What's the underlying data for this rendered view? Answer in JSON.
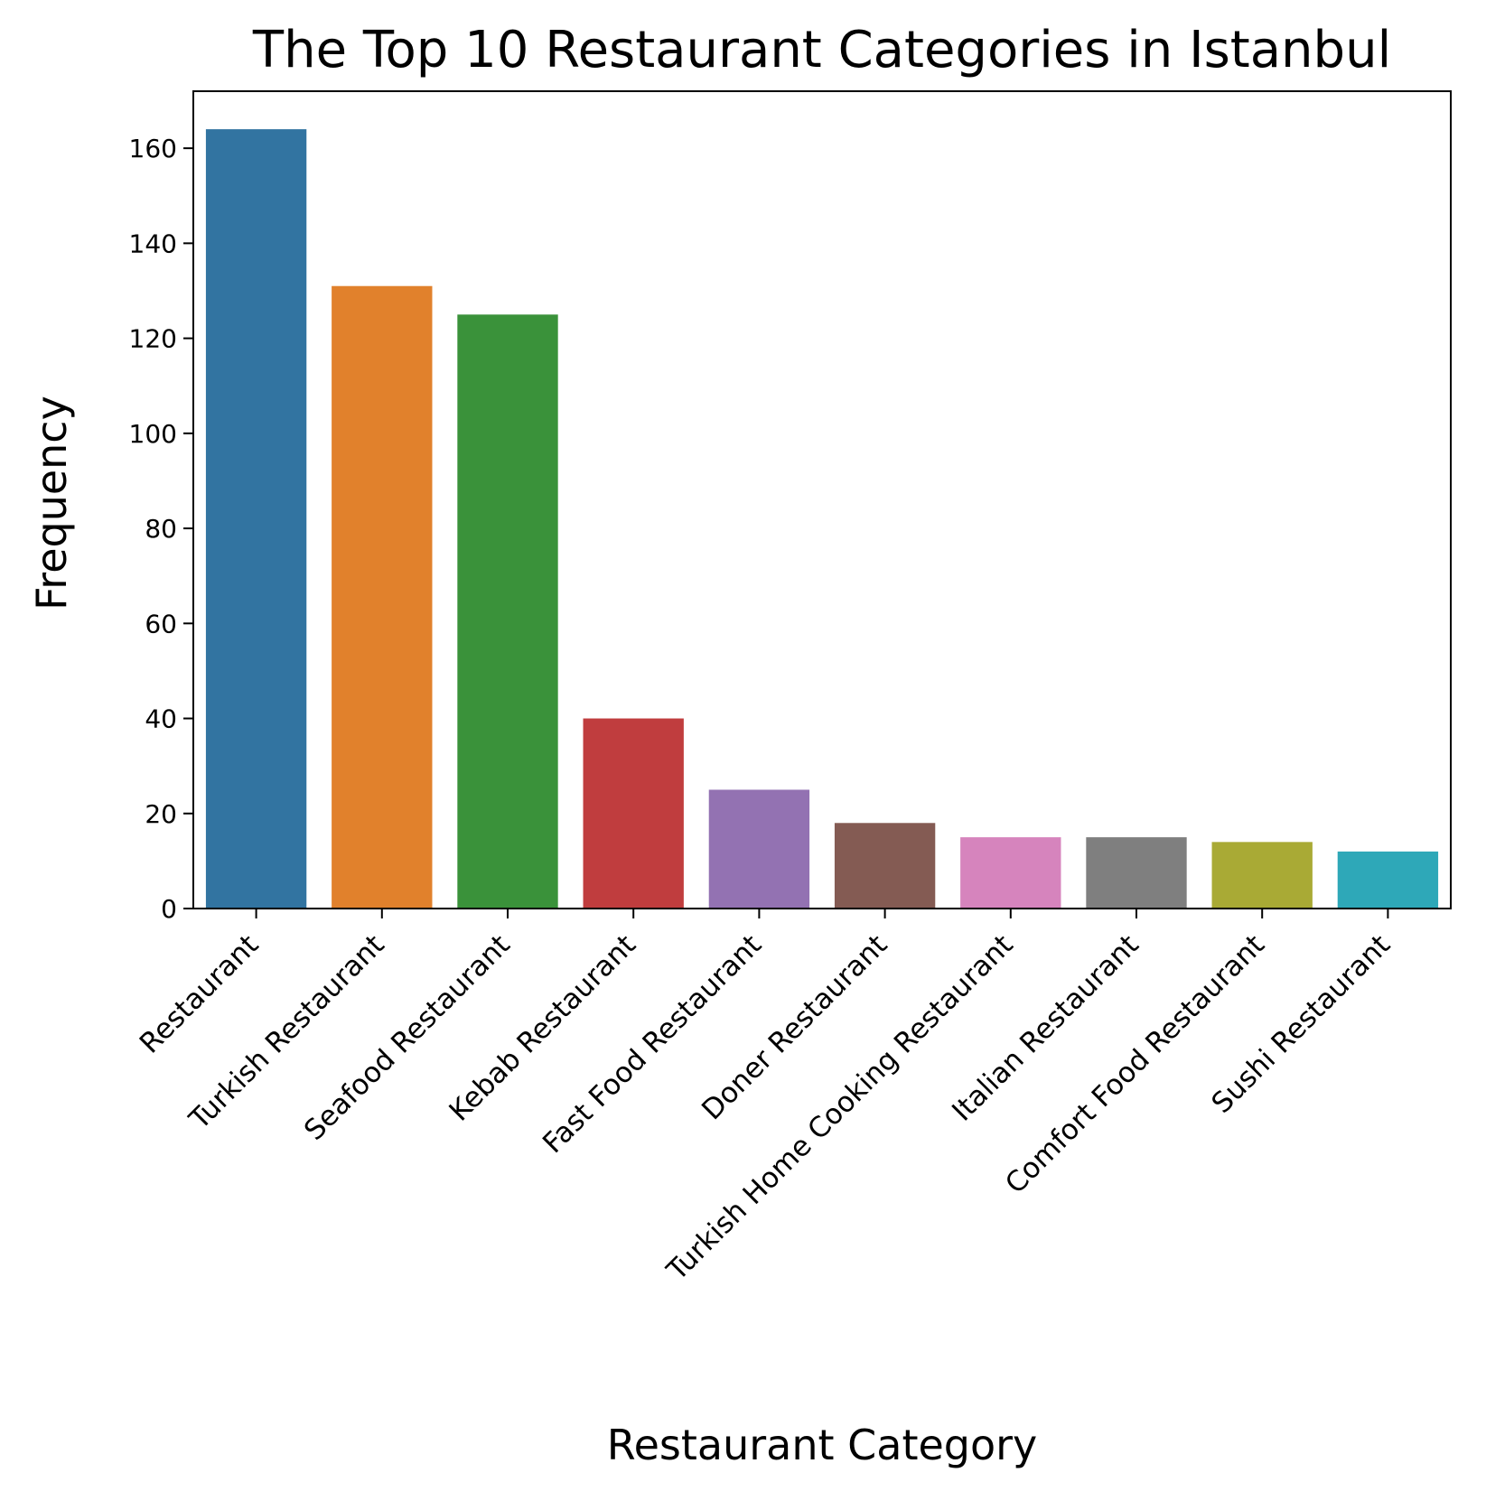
{
  "chart_data": {
    "type": "bar",
    "title": "The Top 10 Restaurant Categories in Istanbul",
    "xlabel": "Restaurant Category",
    "ylabel": "Frequency",
    "ylim": [
      0,
      172
    ],
    "yticks": [
      0,
      20,
      40,
      60,
      80,
      100,
      120,
      140,
      160
    ],
    "grid": false,
    "categories": [
      "Restaurant",
      "Turkish Restaurant",
      "Seafood Restaurant",
      "Kebab Restaurant",
      "Fast Food Restaurant",
      "Doner Restaurant",
      "Turkish Home Cooking Restaurant",
      "Italian Restaurant",
      "Comfort Food Restaurant",
      "Sushi Restaurant"
    ],
    "values": [
      164,
      131,
      125,
      40,
      25,
      18,
      15,
      15,
      14,
      12
    ],
    "colors": [
      "#3274a1",
      "#e1812c",
      "#3a923a",
      "#c03d3e",
      "#9372b2",
      "#845b53",
      "#d684bd",
      "#7f7f7f",
      "#a9aa35",
      "#2ea8b8"
    ]
  }
}
